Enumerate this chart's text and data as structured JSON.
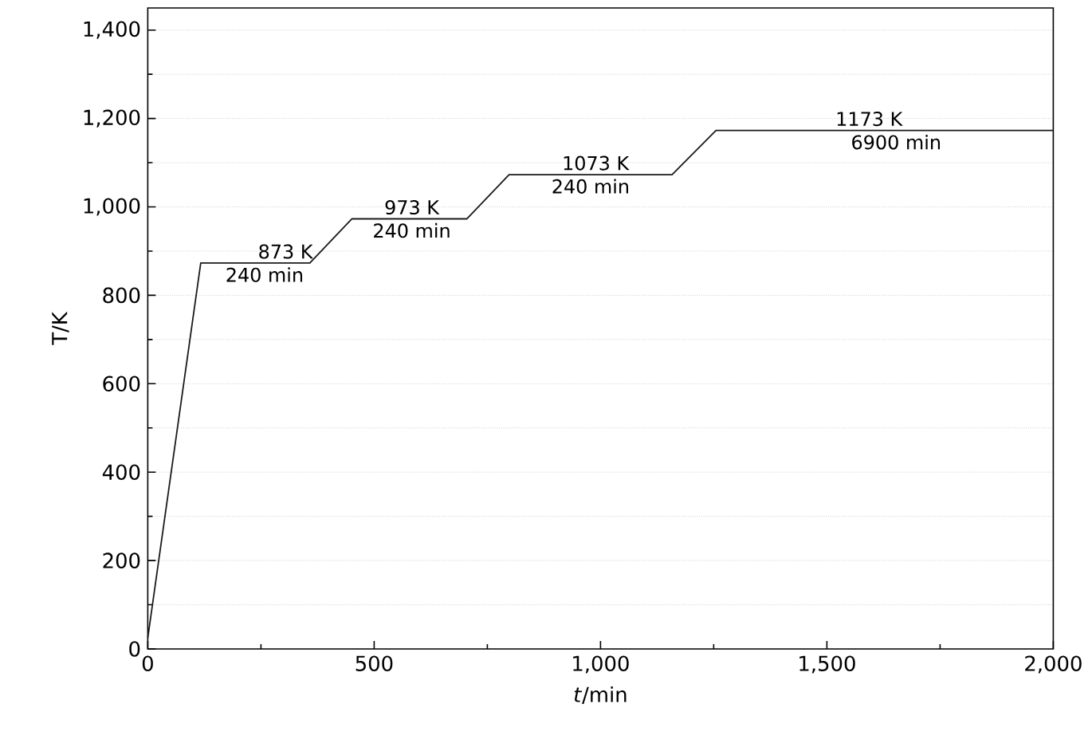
{
  "chart_data": {
    "type": "line",
    "xlabel": "*t*/min",
    "ylabel": "T/K",
    "color": "#1a1a1a",
    "x": [
      0,
      117,
      358,
      451,
      705,
      798,
      1158,
      1255,
      2000
    ],
    "values": [
      25,
      873,
      873,
      973,
      973,
      1073,
      1073,
      1173,
      1173
    ],
    "xlim": [
      0,
      2000
    ],
    "ylim": [
      0,
      1450
    ],
    "xticks": [
      0,
      500,
      {
        "value": 1000,
        "label": "1,000"
      },
      {
        "value": 1500,
        "label": "1,500"
      },
      {
        "value": 2000,
        "label": "2,000"
      }
    ],
    "yticks": [
      0,
      200,
      400,
      600,
      800,
      {
        "value": 1000,
        "label": "1,000"
      },
      {
        "value": 1200,
        "label": "1,200"
      },
      {
        "value": 1400,
        "label": "1,400"
      }
    ],
    "grid": "y",
    "marker": "none",
    "line_style": "solid",
    "annotations": [
      {
        "text": "873 K",
        "x": 304,
        "y": 873
      },
      {
        "text": "240 min",
        "x": 258,
        "y": 873
      },
      {
        "text": "973 K",
        "x": 583,
        "y": 973
      },
      {
        "text": "240 min",
        "x": 583,
        "y": 973
      },
      {
        "text": "1073 K",
        "x": 989,
        "y": 1073
      },
      {
        "text": "240 min",
        "x": 978,
        "y": 1073
      },
      {
        "text": "1173 K",
        "x": 1593,
        "y": 1173
      },
      {
        "text": "6900 min",
        "x": 1653,
        "y": 1173
      }
    ]
  }
}
